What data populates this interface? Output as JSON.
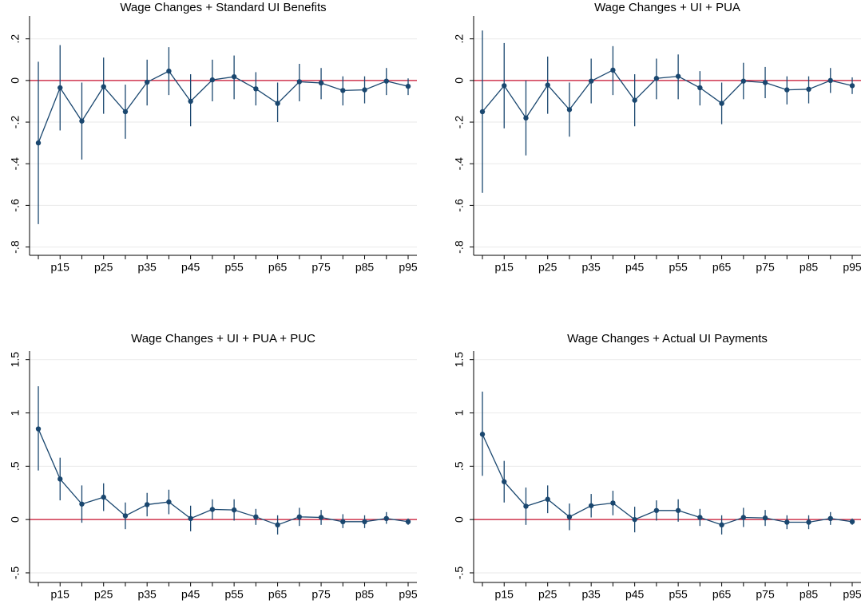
{
  "chart_data": [
    {
      "type": "errorbar-line",
      "title": "Wage Changes + Standard UI Benefits",
      "categories": [
        null,
        "p15",
        null,
        "p25",
        null,
        "p35",
        null,
        "p45",
        null,
        "p55",
        null,
        "p65",
        null,
        "p75",
        null,
        "p85",
        null,
        "p95"
      ],
      "series": [
        {
          "color": "#1a476f",
          "values": [
            -0.3,
            -0.035,
            -0.195,
            -0.03,
            -0.15,
            -0.008,
            0.045,
            -0.1,
            0.003,
            0.018,
            -0.04,
            -0.11,
            -0.006,
            -0.012,
            -0.048,
            -0.045,
            -0.003,
            -0.028
          ],
          "lower": [
            -0.69,
            -0.24,
            -0.38,
            -0.16,
            -0.28,
            -0.12,
            -0.07,
            -0.22,
            -0.1,
            -0.09,
            -0.12,
            -0.2,
            -0.1,
            -0.09,
            -0.12,
            -0.11,
            -0.07,
            -0.07
          ],
          "upper": [
            0.09,
            0.17,
            -0.01,
            0.11,
            -0.02,
            0.1,
            0.16,
            0.03,
            0.1,
            0.12,
            0.04,
            -0.01,
            0.08,
            0.06,
            0.02,
            0.02,
            0.06,
            0.01
          ]
        }
      ],
      "ylim": [
        -0.84,
        0.31
      ],
      "yticks": [
        {
          "value": -0.8,
          "label": "-.8"
        },
        {
          "value": -0.6,
          "label": "-.6"
        },
        {
          "value": -0.4,
          "label": "-.4"
        },
        {
          "value": -0.2,
          "label": "-.2"
        },
        0,
        {
          "value": 0.2,
          "label": ".2"
        }
      ],
      "grid": true,
      "reference_line": {
        "value": 0,
        "color": "#c8102e"
      }
    },
    {
      "type": "errorbar-line",
      "title": "Wage Changes + UI + PUA",
      "categories": [
        null,
        "p15",
        null,
        "p25",
        null,
        "p35",
        null,
        "p45",
        null,
        "p55",
        null,
        "p65",
        null,
        "p75",
        null,
        "p85",
        null,
        "p95"
      ],
      "series": [
        {
          "color": "#1a476f",
          "values": [
            -0.15,
            -0.025,
            -0.18,
            -0.022,
            -0.14,
            -0.003,
            0.05,
            -0.095,
            0.01,
            0.02,
            -0.035,
            -0.11,
            -0.003,
            -0.01,
            -0.045,
            -0.042,
            0.0,
            -0.025
          ],
          "lower": [
            -0.54,
            -0.23,
            -0.36,
            -0.16,
            -0.27,
            -0.11,
            -0.07,
            -0.22,
            -0.09,
            -0.09,
            -0.12,
            -0.21,
            -0.09,
            -0.085,
            -0.115,
            -0.11,
            -0.06,
            -0.065
          ],
          "upper": [
            0.24,
            0.18,
            0.0,
            0.115,
            -0.01,
            0.105,
            0.165,
            0.03,
            0.105,
            0.125,
            0.045,
            -0.01,
            0.085,
            0.065,
            0.02,
            0.02,
            0.06,
            0.015
          ]
        }
      ],
      "ylim": [
        -0.84,
        0.31
      ],
      "yticks": [
        {
          "value": -0.8,
          "label": "-.8"
        },
        {
          "value": -0.6,
          "label": "-.6"
        },
        {
          "value": -0.4,
          "label": "-.4"
        },
        {
          "value": -0.2,
          "label": "-.2"
        },
        0,
        {
          "value": 0.2,
          "label": ".2"
        }
      ],
      "grid": true,
      "reference_line": {
        "value": 0,
        "color": "#c8102e"
      }
    },
    {
      "type": "errorbar-line",
      "title": "Wage Changes + UI + PUA + PUC",
      "categories": [
        null,
        "p15",
        null,
        "p25",
        null,
        "p35",
        null,
        "p45",
        null,
        "p55",
        null,
        "p65",
        null,
        "p75",
        null,
        "p85",
        null,
        "p95"
      ],
      "series": [
        {
          "color": "#1a476f",
          "values": [
            0.85,
            0.38,
            0.145,
            0.21,
            0.035,
            0.14,
            0.165,
            0.01,
            0.095,
            0.09,
            0.025,
            -0.05,
            0.025,
            0.02,
            -0.02,
            -0.02,
            0.01,
            -0.02
          ],
          "lower": [
            0.46,
            0.18,
            -0.03,
            0.08,
            -0.09,
            0.03,
            0.05,
            -0.11,
            0.0,
            -0.01,
            -0.05,
            -0.14,
            -0.06,
            -0.05,
            -0.08,
            -0.08,
            -0.04,
            -0.05
          ],
          "upper": [
            1.25,
            0.58,
            0.32,
            0.34,
            0.16,
            0.25,
            0.28,
            0.13,
            0.19,
            0.19,
            0.1,
            0.04,
            0.11,
            0.09,
            0.05,
            0.04,
            0.07,
            0.01
          ]
        }
      ],
      "ylim": [
        -0.59,
        1.58
      ],
      "yticks": [
        {
          "value": -0.5,
          "label": "-.5"
        },
        0,
        {
          "value": 0.5,
          "label": ".5"
        },
        1,
        1.5
      ],
      "grid": true,
      "reference_line": {
        "value": 0,
        "color": "#c8102e"
      }
    },
    {
      "type": "errorbar-line",
      "title": "Wage Changes + Actual UI Payments",
      "categories": [
        null,
        "p15",
        null,
        "p25",
        null,
        "p35",
        null,
        "p45",
        null,
        "p55",
        null,
        "p65",
        null,
        "p75",
        null,
        "p85",
        null,
        "p95"
      ],
      "series": [
        {
          "color": "#1a476f",
          "values": [
            0.8,
            0.355,
            0.125,
            0.19,
            0.025,
            0.13,
            0.155,
            0.0,
            0.085,
            0.085,
            0.02,
            -0.05,
            0.02,
            0.015,
            -0.025,
            -0.025,
            0.01,
            -0.02
          ],
          "lower": [
            0.41,
            0.16,
            -0.05,
            0.06,
            -0.1,
            0.02,
            0.04,
            -0.12,
            -0.01,
            -0.02,
            -0.06,
            -0.14,
            -0.07,
            -0.06,
            -0.09,
            -0.09,
            -0.05,
            -0.05
          ],
          "upper": [
            1.2,
            0.55,
            0.3,
            0.32,
            0.15,
            0.24,
            0.27,
            0.12,
            0.18,
            0.19,
            0.1,
            0.04,
            0.11,
            0.09,
            0.04,
            0.04,
            0.07,
            0.01
          ]
        }
      ],
      "ylim": [
        -0.59,
        1.58
      ],
      "yticks": [
        {
          "value": -0.5,
          "label": "-.5"
        },
        0,
        {
          "value": 0.5,
          "label": ".5"
        },
        1,
        1.5
      ],
      "grid": true,
      "reference_line": {
        "value": 0,
        "color": "#c8102e"
      }
    }
  ]
}
